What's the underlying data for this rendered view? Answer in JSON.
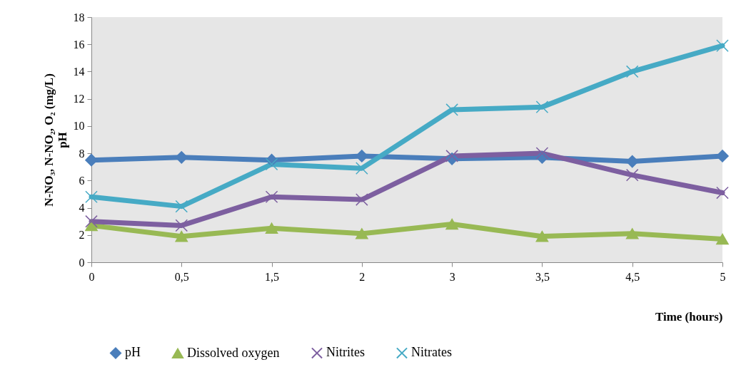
{
  "chart_data": {
    "type": "line",
    "xlabel": "Time (hours)",
    "ylabel": "N-NO₃, N-NO₂, O₂ (mg/L)\npH",
    "categories": [
      "0",
      "0,5",
      "1,5",
      "2",
      "3",
      "3,5",
      "4,5",
      "5"
    ],
    "ylim": [
      0,
      18
    ],
    "yticks": [
      0,
      2,
      4,
      6,
      8,
      10,
      12,
      14,
      16,
      18
    ],
    "legend": "bottom",
    "line_style": "solid",
    "series": [
      {
        "name": "pH",
        "color": "#4a7ebb",
        "marker": "diamond",
        "values": [
          7.5,
          7.7,
          7.5,
          7.8,
          7.6,
          7.7,
          7.4,
          7.8
        ]
      },
      {
        "name": "Dissolved oxygen",
        "color": "#98b954",
        "marker": "triangle",
        "values": [
          2.7,
          1.9,
          2.5,
          2.1,
          2.8,
          1.9,
          2.1,
          1.7
        ]
      },
      {
        "name": "Nitrites",
        "color": "#7d5fa0",
        "marker": "cross",
        "values": [
          3.0,
          2.7,
          4.8,
          4.6,
          7.8,
          8.0,
          6.4,
          5.1
        ]
      },
      {
        "name": "Nitrates",
        "color": "#46aac5",
        "marker": "cross",
        "values": [
          4.8,
          4.1,
          7.2,
          6.9,
          11.2,
          11.4,
          14.0,
          15.9
        ]
      }
    ]
  }
}
